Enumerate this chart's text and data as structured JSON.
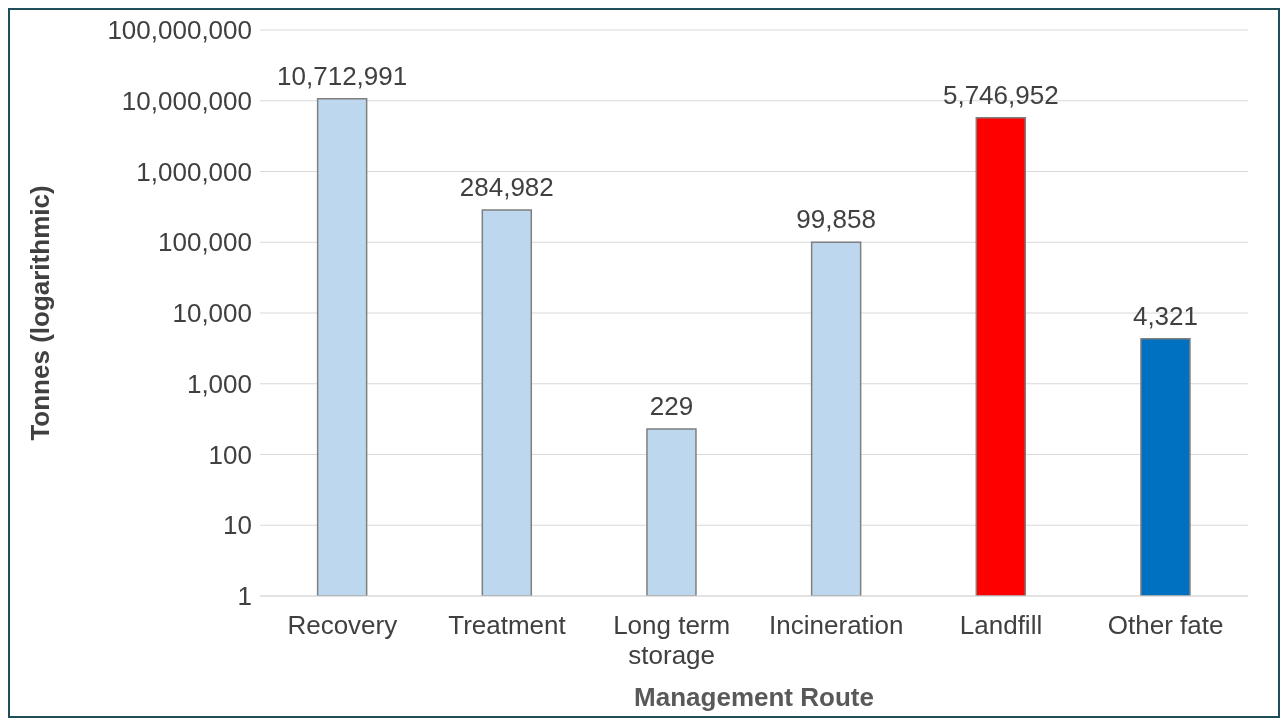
{
  "chart_data": {
    "type": "bar",
    "xlabel": "Management Route",
    "ylabel": "Tonnes (logarithmic)",
    "categories": [
      "Recovery",
      "Treatment",
      "Long term storage",
      "Incineration",
      "Landfill",
      "Other fate"
    ],
    "values": [
      10712991,
      284982,
      229,
      99858,
      5746952,
      4321
    ],
    "value_labels": [
      "10,712,991",
      "284,982",
      "229",
      "99,858",
      "5,746,952",
      "4,321"
    ],
    "colors": [
      "#bdd7ee",
      "#bdd7ee",
      "#bdd7ee",
      "#bdd7ee",
      "#ff0000",
      "#0070c0"
    ],
    "log": true,
    "ylim": [
      1,
      100000000
    ],
    "yticks": [
      1,
      10,
      100,
      {
        "value": 1000,
        "label": "1,000"
      },
      {
        "value": 10000,
        "label": "10,000"
      },
      {
        "value": 100000,
        "label": "100,000"
      },
      {
        "value": 1000000,
        "label": "1,000,000"
      },
      {
        "value": 10000000,
        "label": "10,000,000"
      },
      {
        "value": 100000000,
        "label": "100,000,000"
      }
    ],
    "grid": "y",
    "legend": false
  }
}
